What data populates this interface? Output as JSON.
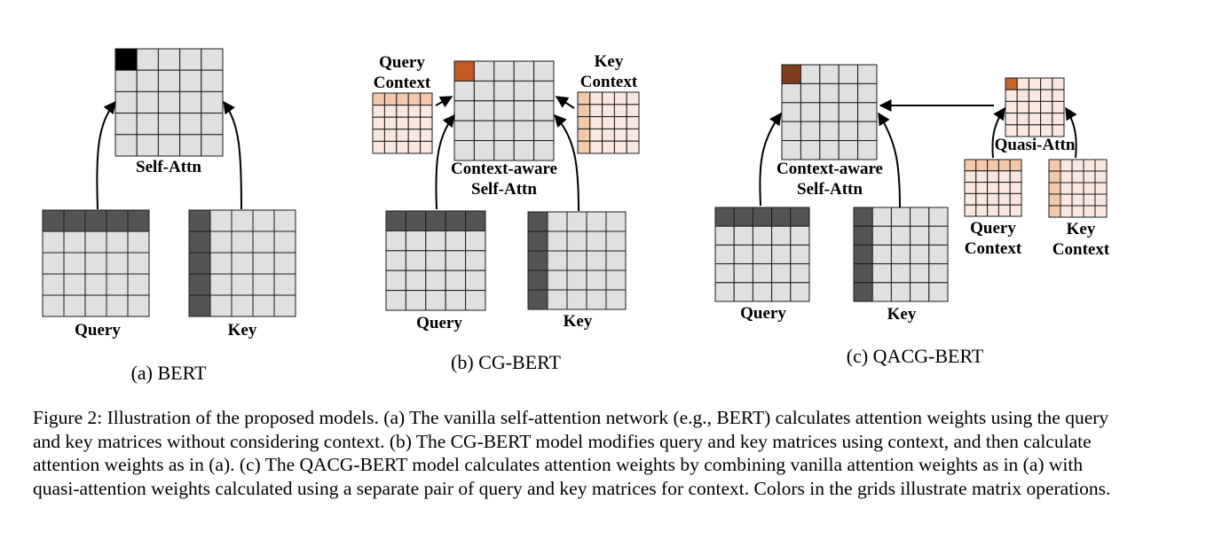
{
  "colors": {
    "light_cell": "#e0e0e0",
    "dark_cell": "#545454",
    "black_cell": "#000000",
    "ctx_light": "#fae8e0",
    "ctx_mid": "#f4c8aa",
    "orange_cell": "#c25a24",
    "brown_cell": "#7f3d1c",
    "quasi_orange": "#c6652a"
  },
  "panels": {
    "a": {
      "matrix_label": "Self-Attn",
      "query_label": "Query",
      "key_label": "Key",
      "subcaption": "(a) BERT"
    },
    "b": {
      "matrix_label_line1": "Context-aware",
      "matrix_label_line2": "Self-Attn",
      "query_context_line1": "Query",
      "query_context_line2": "Context",
      "key_context_line1": "Key",
      "key_context_line2": "Context",
      "query_label": "Query",
      "key_label": "Key",
      "subcaption": "(b) CG-BERT"
    },
    "c": {
      "matrix_label_line1": "Context-aware",
      "matrix_label_line2": "Self-Attn",
      "quasi_label": "Quasi-Attn",
      "query_context_line1": "Query",
      "query_context_line2": "Context",
      "key_context_line1": "Key",
      "key_context_line2": "Context",
      "query_label": "Query",
      "key_label": "Key",
      "subcaption": "(c) QACG-BERT"
    }
  },
  "caption": "Figure 2: Illustration of the proposed models. (a) The vanilla self-attention network (e.g., BERT) calculates attention weights using the query and key matrices without considering context. (b) The CG-BERT model modifies query and key matrices using context, and then calculate attention weights as in (a). (c) The QACG-BERT model calculates attention weights by combining vanilla attention weights as in (a) with quasi-attention weights calculated using a separate pair of query and key matrices for context. Colors in the grids illustrate matrix operations."
}
